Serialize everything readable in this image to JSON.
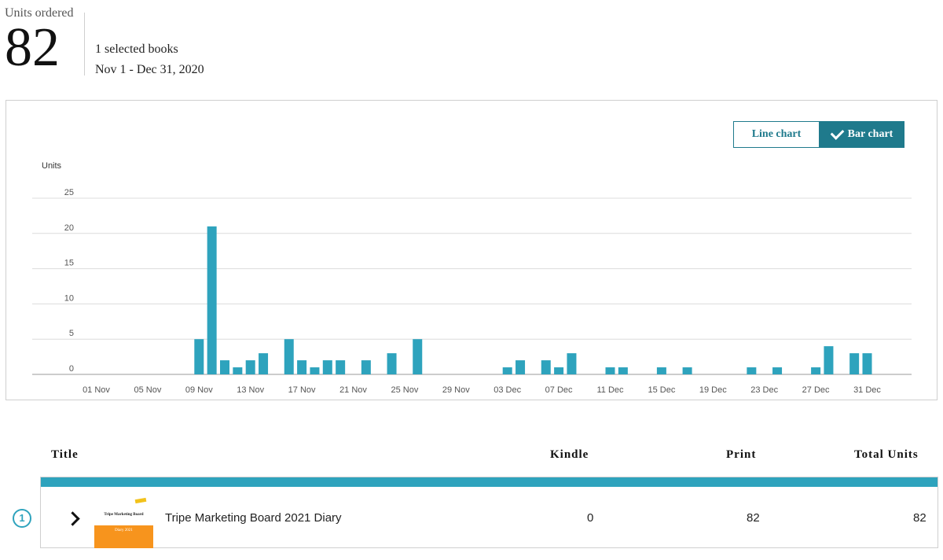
{
  "summary": {
    "units_label": "Units ordered",
    "units_value": "82",
    "selected_books": "1 selected books",
    "date_range": "Nov 1 - Dec 31, 2020"
  },
  "toggle": {
    "line_label": "Line chart",
    "bar_label": "Bar chart",
    "active": "bar"
  },
  "chart_data": {
    "type": "bar",
    "ylabel": "Units",
    "ylim": [
      0,
      25
    ],
    "yticks": [
      0,
      5,
      10,
      15,
      20,
      25
    ],
    "grid": true,
    "color": "#2ea3bd",
    "categories": [
      "01 Nov",
      "02 Nov",
      "03 Nov",
      "04 Nov",
      "05 Nov",
      "06 Nov",
      "07 Nov",
      "08 Nov",
      "09 Nov",
      "10 Nov",
      "11 Nov",
      "12 Nov",
      "13 Nov",
      "14 Nov",
      "15 Nov",
      "16 Nov",
      "17 Nov",
      "18 Nov",
      "19 Nov",
      "20 Nov",
      "21 Nov",
      "22 Nov",
      "23 Nov",
      "24 Nov",
      "25 Nov",
      "26 Nov",
      "27 Nov",
      "28 Nov",
      "29 Nov",
      "30 Nov",
      "01 Dec",
      "02 Dec",
      "03 Dec",
      "04 Dec",
      "05 Dec",
      "06 Dec",
      "07 Dec",
      "08 Dec",
      "09 Dec",
      "10 Dec",
      "11 Dec",
      "12 Dec",
      "13 Dec",
      "14 Dec",
      "15 Dec",
      "16 Dec",
      "17 Dec",
      "18 Dec",
      "19 Dec",
      "20 Dec",
      "21 Dec",
      "22 Dec",
      "23 Dec",
      "24 Dec",
      "25 Dec",
      "26 Dec",
      "27 Dec",
      "28 Dec",
      "29 Dec",
      "30 Dec",
      "31 Dec"
    ],
    "values": [
      0,
      0,
      0,
      0,
      0,
      0,
      0,
      0,
      5,
      21,
      2,
      1,
      2,
      3,
      0,
      5,
      2,
      1,
      2,
      2,
      0,
      2,
      0,
      3,
      0,
      5,
      0,
      0,
      0,
      0,
      0,
      0,
      1,
      2,
      0,
      2,
      1,
      3,
      0,
      0,
      1,
      1,
      0,
      0,
      1,
      0,
      1,
      0,
      0,
      0,
      0,
      1,
      0,
      1,
      0,
      0,
      1,
      4,
      0,
      3,
      3
    ],
    "xtick_labels": [
      "01 Nov",
      "05 Nov",
      "09 Nov",
      "13 Nov",
      "17 Nov",
      "21 Nov",
      "25 Nov",
      "29 Nov",
      "03 Dec",
      "07 Dec",
      "11 Dec",
      "15 Dec",
      "19 Dec",
      "23 Dec",
      "27 Dec",
      "31 Dec"
    ]
  },
  "table": {
    "headers": {
      "title": "Title",
      "kindle": "Kindle",
      "print": "Print",
      "total": "Total Units"
    },
    "rows": [
      {
        "index": "1",
        "title": "Tripe Marketing Board 2021 Diary",
        "cover_title": "Tripe Marketing Board",
        "cover_sub": "Diary 2021",
        "kindle": "0",
        "print": "82",
        "total": "82"
      }
    ]
  }
}
